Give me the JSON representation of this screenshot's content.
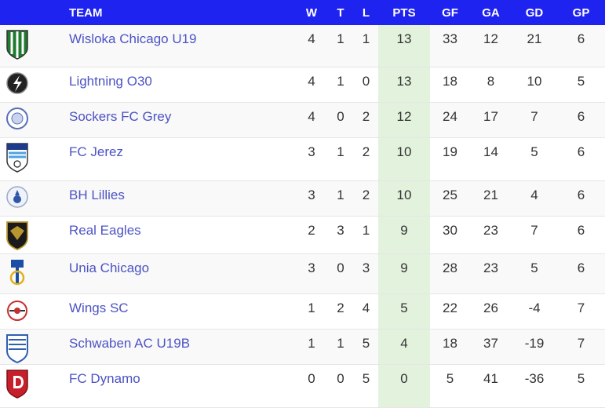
{
  "header": {
    "team": "TEAM",
    "w": "W",
    "t": "T",
    "l": "L",
    "pts": "PTS",
    "gf": "GF",
    "ga": "GA",
    "gd": "GD",
    "gp": "GP"
  },
  "colors": {
    "header_bg": "#1f23f0",
    "pts_bg": "#e2f2dd",
    "link": "#4c53c4"
  },
  "rows": [
    {
      "name": "Wisloka Chicago U19",
      "w": "4",
      "t": "1",
      "l": "1",
      "pts": "13",
      "gf": "33",
      "ga": "12",
      "gd": "21",
      "gp": "6",
      "crest": "wisloka-crest-icon"
    },
    {
      "name": "Lightning O30",
      "w": "4",
      "t": "1",
      "l": "0",
      "pts": "13",
      "gf": "18",
      "ga": "8",
      "gd": "10",
      "gp": "5",
      "crest": "lightning-crest-icon"
    },
    {
      "name": "Sockers FC Grey",
      "w": "4",
      "t": "0",
      "l": "2",
      "pts": "12",
      "gf": "24",
      "ga": "17",
      "gd": "7",
      "gp": "6",
      "crest": "sockers-crest-icon"
    },
    {
      "name": "FC Jerez",
      "w": "3",
      "t": "1",
      "l": "2",
      "pts": "10",
      "gf": "19",
      "ga": "14",
      "gd": "5",
      "gp": "6",
      "crest": "jerez-crest-icon"
    },
    {
      "name": "BH Lillies",
      "w": "3",
      "t": "1",
      "l": "2",
      "pts": "10",
      "gf": "25",
      "ga": "21",
      "gd": "4",
      "gp": "6",
      "crest": "lillies-crest-icon"
    },
    {
      "name": "Real Eagles",
      "w": "2",
      "t": "3",
      "l": "1",
      "pts": "9",
      "gf": "30",
      "ga": "23",
      "gd": "7",
      "gp": "6",
      "crest": "eagles-crest-icon"
    },
    {
      "name": "Unia Chicago",
      "w": "3",
      "t": "0",
      "l": "3",
      "pts": "9",
      "gf": "28",
      "ga": "23",
      "gd": "5",
      "gp": "6",
      "crest": "unia-crest-icon"
    },
    {
      "name": "Wings SC",
      "w": "1",
      "t": "2",
      "l": "4",
      "pts": "5",
      "gf": "22",
      "ga": "26",
      "gd": "-4",
      "gp": "7",
      "crest": "wings-crest-icon"
    },
    {
      "name": "Schwaben AC U19B",
      "w": "1",
      "t": "1",
      "l": "5",
      "pts": "4",
      "gf": "18",
      "ga": "37",
      "gd": "-19",
      "gp": "7",
      "crest": "schwaben-crest-icon"
    },
    {
      "name": "FC Dynamo",
      "w": "0",
      "t": "0",
      "l": "5",
      "pts": "0",
      "gf": "5",
      "ga": "41",
      "gd": "-36",
      "gp": "5",
      "crest": "dynamo-crest-icon"
    }
  ]
}
